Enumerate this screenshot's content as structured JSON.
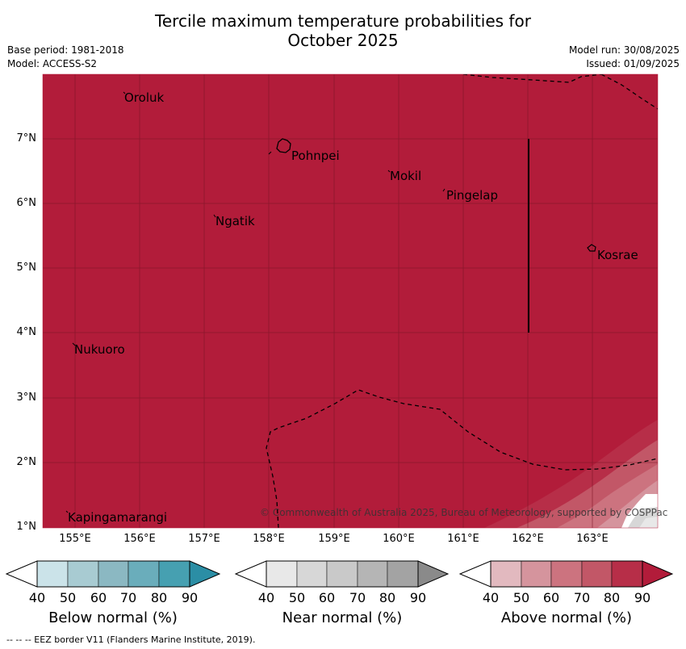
{
  "title_line1": "Tercile maximum temperature probabilities for",
  "title_line2": "October 2025",
  "base_period": "Base period: 1981-2018",
  "model": "Model: ACCESS-S2",
  "model_run": "Model run: 30/08/2025",
  "issued": "Issued: 01/09/2025",
  "lat_labels": [
    "7°N",
    "6°N",
    "5°N",
    "4°N",
    "3°N",
    "2°N",
    "1°N"
  ],
  "lon_labels": [
    "155°E",
    "156°E",
    "157°E",
    "158°E",
    "159°E",
    "160°E",
    "161°E",
    "162°E",
    "163°E"
  ],
  "places": [
    {
      "name": "Oroluk"
    },
    {
      "name": "Pohnpei"
    },
    {
      "name": "Mokil"
    },
    {
      "name": "Pingelap"
    },
    {
      "name": "Ngatik"
    },
    {
      "name": "Kosrae"
    },
    {
      "name": "Nukuoro"
    },
    {
      "name": "Kapingamarangi"
    }
  ],
  "copyright": "© Commonwealth of Australia 2025, Bureau of Meteorology, supported by COSPPac",
  "legends": [
    {
      "title": "Below normal (%)",
      "ticks": [
        "40",
        "50",
        "60",
        "70",
        "80",
        "90"
      ],
      "colors": [
        "#ffffff",
        "#cbe3e9",
        "#a8cbd2",
        "#8bb8c2",
        "#6aadbb",
        "#46a0b1",
        "#2b8ea5"
      ]
    },
    {
      "title": "Near normal (%)",
      "ticks": [
        "40",
        "50",
        "60",
        "70",
        "80",
        "90"
      ],
      "colors": [
        "#ffffff",
        "#e8e8e8",
        "#d7d7d7",
        "#c9c9c9",
        "#b5b5b5",
        "#a3a3a3",
        "#8a8a8a"
      ]
    },
    {
      "title": "Above normal (%)",
      "ticks": [
        "40",
        "50",
        "60",
        "70",
        "80",
        "90"
      ],
      "colors": [
        "#ffffff",
        "#e2b9bf",
        "#d5949d",
        "#cc737f",
        "#c25767",
        "#b72e48",
        "#b21c3a"
      ]
    }
  ],
  "footnote": "--  --  -- EEZ border V11 (Flanders Marine Institute, 2019).",
  "map_fill_color": "#b21c3a"
}
